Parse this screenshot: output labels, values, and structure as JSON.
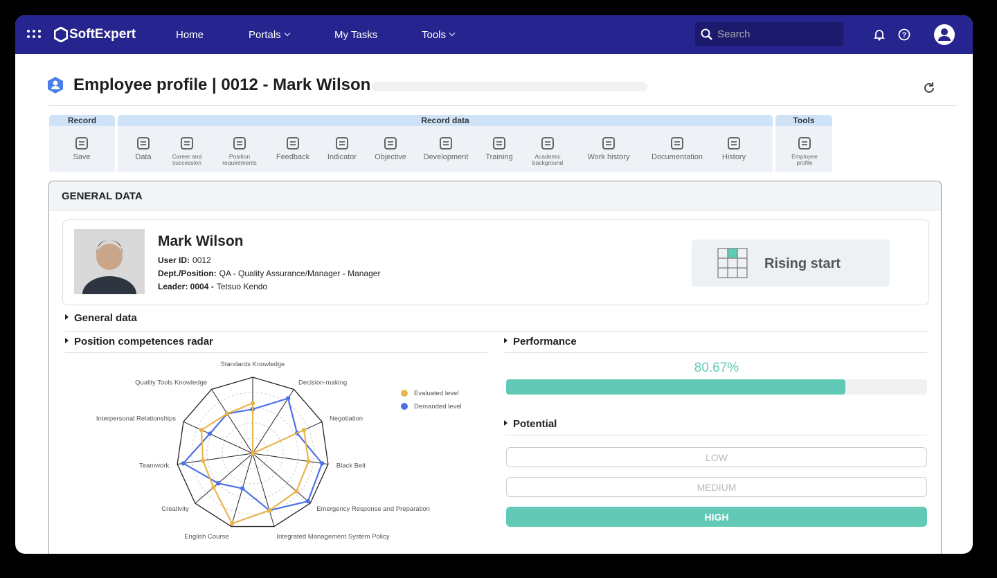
{
  "nav": {
    "brand": "SoftExpert",
    "items": [
      "Home",
      "Portals",
      "My Tasks",
      "Tools"
    ],
    "search": "Search"
  },
  "header": {
    "title": "Employee profile | 0012 - Mark Wilson"
  },
  "toolbar": {
    "groups": [
      {
        "title": "Record",
        "items": [
          "Save"
        ]
      },
      {
        "title": "Record data",
        "items": [
          "Data",
          "Career and succession",
          "Position requirements",
          "Feedback",
          "Indicator",
          "Objective",
          "Development",
          "Training",
          "Academic background",
          "Work history",
          "Documentation",
          "History"
        ]
      },
      {
        "title": "Tools",
        "items": [
          "Employee profile"
        ]
      }
    ]
  },
  "panel": {
    "title": "GENERAL DATA"
  },
  "profile": {
    "name": "Mark Wilson",
    "fields": [
      {
        "label": "User ID:",
        "value": "0012"
      },
      {
        "label": "Dept./Position:",
        "value": "QA - Quality Assurance/Manager - Manager"
      },
      {
        "label": "Leader: 0004 -",
        "value": "Tetsuo Kendo"
      }
    ],
    "nine_box": "Rising start"
  },
  "sections": {
    "general": "General data",
    "radar": "Position competences radar",
    "performance": "Performance",
    "potential": "Potential"
  },
  "chart_data": {
    "type": "radar",
    "categories": [
      "Standards Knowledge",
      "Decision-making",
      "Negotiation",
      "Black Belt",
      "Emergency Response and Preparation",
      "Integrated Management System Policy",
      "English Course",
      "Creativity",
      "Teamwork",
      "Interpersonal Relationships",
      "Quality Tools Knowledge"
    ],
    "series": [
      {
        "name": "Evaluated level",
        "color": "#e9b44c",
        "values": [
          3.3,
          0,
          3.7,
          3.7,
          3.8,
          3.9,
          4.8,
          3.4,
          3.3,
          3.7,
          3.1
        ]
      },
      {
        "name": "Demanded level",
        "color": "#4c72e6",
        "values": [
          2.9,
          4.3,
          3.2,
          4.6,
          4.8,
          3.9,
          2.4,
          3.0,
          4.6,
          3.1,
          3.1
        ]
      }
    ],
    "rlim": [
      0,
      5
    ],
    "rticks": [
      1,
      2,
      3,
      4
    ]
  },
  "performance": {
    "value": 80.67,
    "value_label": "80.67%",
    "color": "#62c9b6"
  },
  "potential": {
    "levels": [
      "LOW",
      "MEDIUM",
      "HIGH"
    ],
    "selected": "HIGH"
  }
}
